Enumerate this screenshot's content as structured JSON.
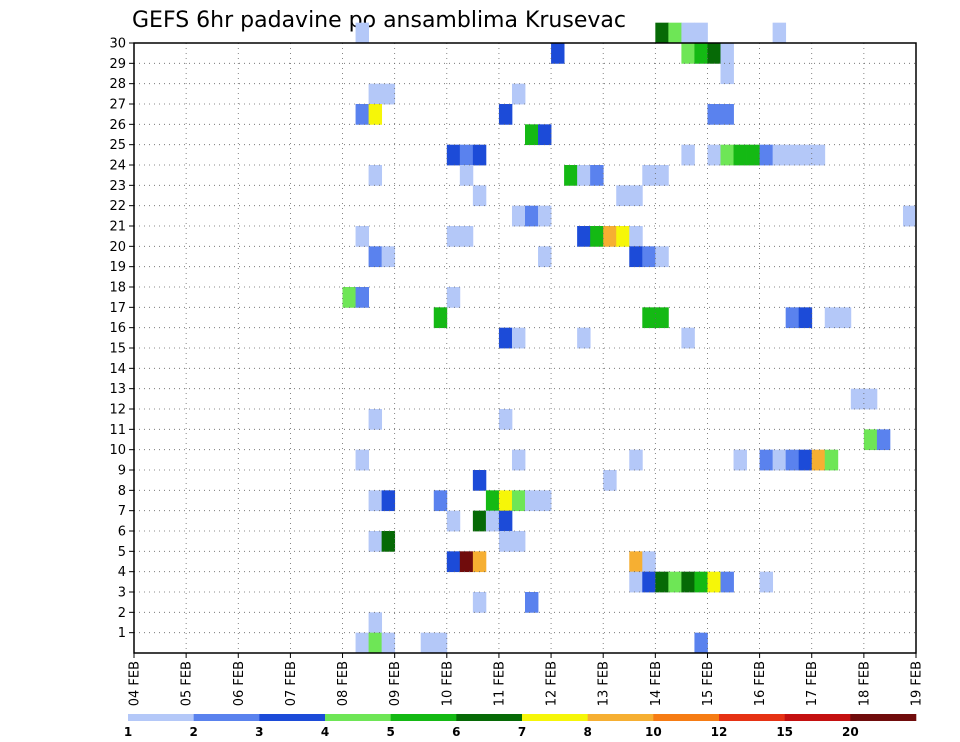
{
  "chart_data": {
    "type": "heatmap",
    "title": "GEFS 6hr padavine po ansamblima Krusevac",
    "xlabel": "",
    "ylabel": "",
    "x_ticks": [
      "04 FEB",
      "05 FEB",
      "06 FEB",
      "07 FEB",
      "08 FEB",
      "09 FEB",
      "10 FEB",
      "11 FEB",
      "12 FEB",
      "13 FEB",
      "14 FEB",
      "15 FEB",
      "16 FEB",
      "17 FEB",
      "18 FEB",
      "19 FEB"
    ],
    "y_ticks": [
      "1",
      "2",
      "3",
      "4",
      "5",
      "6",
      "7",
      "8",
      "9",
      "10",
      "11",
      "12",
      "13",
      "14",
      "15",
      "16",
      "17",
      "18",
      "19",
      "20",
      "21",
      "22",
      "23",
      "24",
      "25",
      "26",
      "27",
      "28",
      "29",
      "30"
    ],
    "xlim": [
      0,
      60
    ],
    "ylim": [
      0,
      30
    ],
    "grid": true,
    "colorbar": {
      "labels": [
        "1",
        "2",
        "3",
        "4",
        "5",
        "6",
        "7",
        "8",
        "10",
        "12",
        "15",
        "20"
      ],
      "colors": [
        "#b4c8f8",
        "#5a82ee",
        "#1c4bd8",
        "#6ee656",
        "#14b914",
        "#066a06",
        "#f6f608",
        "#f6af32",
        "#f67c14",
        "#e63214",
        "#c41010",
        "#700c0c"
      ]
    },
    "cells": [
      [
        17,
        30,
        1
      ],
      [
        40,
        30,
        6
      ],
      [
        41,
        30,
        4
      ],
      [
        42,
        30,
        1
      ],
      [
        43,
        30,
        1
      ],
      [
        49,
        30,
        1
      ],
      [
        32,
        29,
        3
      ],
      [
        42,
        29,
        4
      ],
      [
        43,
        29,
        5
      ],
      [
        44,
        29,
        6
      ],
      [
        45,
        29,
        1
      ],
      [
        45,
        28,
        1
      ],
      [
        18,
        27,
        1
      ],
      [
        19,
        27,
        1
      ],
      [
        29,
        27,
        1
      ],
      [
        17,
        26,
        2
      ],
      [
        18,
        26,
        7
      ],
      [
        28,
        26,
        3
      ],
      [
        44,
        26,
        2
      ],
      [
        45,
        26,
        2
      ],
      [
        30,
        25,
        5
      ],
      [
        31,
        25,
        3
      ],
      [
        24,
        24,
        3
      ],
      [
        25,
        24,
        2
      ],
      [
        26,
        24,
        3
      ],
      [
        42,
        24,
        1
      ],
      [
        44,
        24,
        1
      ],
      [
        45,
        24,
        4
      ],
      [
        46,
        24,
        5
      ],
      [
        47,
        24,
        5
      ],
      [
        48,
        24,
        2
      ],
      [
        49,
        24,
        1
      ],
      [
        50,
        24,
        1
      ],
      [
        51,
        24,
        1
      ],
      [
        52,
        24,
        1
      ],
      [
        18,
        23,
        1
      ],
      [
        25,
        23,
        1
      ],
      [
        33,
        23,
        5
      ],
      [
        34,
        23,
        1
      ],
      [
        35,
        23,
        2
      ],
      [
        39,
        23,
        1
      ],
      [
        40,
        23,
        1
      ],
      [
        26,
        22,
        1
      ],
      [
        37,
        22,
        1
      ],
      [
        38,
        22,
        1
      ],
      [
        29,
        21,
        1
      ],
      [
        30,
        21,
        2
      ],
      [
        31,
        21,
        1
      ],
      [
        59,
        21,
        1
      ],
      [
        17,
        20,
        1
      ],
      [
        24,
        20,
        1
      ],
      [
        25,
        20,
        1
      ],
      [
        34,
        20,
        3
      ],
      [
        35,
        20,
        5
      ],
      [
        36,
        20,
        8
      ],
      [
        37,
        20,
        7
      ],
      [
        38,
        20,
        1
      ],
      [
        18,
        19,
        2
      ],
      [
        19,
        19,
        1
      ],
      [
        31,
        19,
        1
      ],
      [
        38,
        19,
        3
      ],
      [
        39,
        19,
        2
      ],
      [
        40,
        19,
        1
      ],
      [
        16,
        17,
        4
      ],
      [
        17,
        17,
        2
      ],
      [
        24,
        17,
        1
      ],
      [
        23,
        16,
        5
      ],
      [
        39,
        16,
        5
      ],
      [
        40,
        16,
        5
      ],
      [
        50,
        16,
        2
      ],
      [
        51,
        16,
        3
      ],
      [
        53,
        16,
        1
      ],
      [
        54,
        16,
        1
      ],
      [
        28,
        15,
        3
      ],
      [
        29,
        15,
        1
      ],
      [
        34,
        15,
        1
      ],
      [
        42,
        15,
        1
      ],
      [
        55,
        12,
        1
      ],
      [
        56,
        12,
        1
      ],
      [
        18,
        11,
        1
      ],
      [
        28,
        11,
        1
      ],
      [
        56,
        10,
        4
      ],
      [
        57,
        10,
        2
      ],
      [
        17,
        9,
        1
      ],
      [
        29,
        9,
        1
      ],
      [
        38,
        9,
        1
      ],
      [
        46,
        9,
        1
      ],
      [
        48,
        9,
        2
      ],
      [
        49,
        9,
        1
      ],
      [
        50,
        9,
        2
      ],
      [
        51,
        9,
        3
      ],
      [
        52,
        9,
        8
      ],
      [
        53,
        9,
        4
      ],
      [
        26,
        8,
        3
      ],
      [
        36,
        8,
        1
      ],
      [
        18,
        7,
        1
      ],
      [
        19,
        7,
        3
      ],
      [
        23,
        7,
        2
      ],
      [
        27,
        7,
        5
      ],
      [
        28,
        7,
        7
      ],
      [
        29,
        7,
        4
      ],
      [
        30,
        7,
        1
      ],
      [
        31,
        7,
        1
      ],
      [
        24,
        6,
        1
      ],
      [
        26,
        6,
        6
      ],
      [
        27,
        6,
        1
      ],
      [
        28,
        6,
        3
      ],
      [
        18,
        5,
        1
      ],
      [
        19,
        5,
        6
      ],
      [
        28,
        5,
        1
      ],
      [
        29,
        5,
        1
      ],
      [
        24,
        4,
        3
      ],
      [
        25,
        4,
        12
      ],
      [
        26,
        4,
        8
      ],
      [
        38,
        4,
        8
      ],
      [
        39,
        4,
        1
      ],
      [
        38,
        3,
        1
      ],
      [
        39,
        3,
        3
      ],
      [
        40,
        3,
        6
      ],
      [
        41,
        3,
        4
      ],
      [
        42,
        3,
        6
      ],
      [
        43,
        3,
        5
      ],
      [
        44,
        3,
        7
      ],
      [
        45,
        3,
        2
      ],
      [
        48,
        3,
        1
      ],
      [
        26,
        2,
        1
      ],
      [
        30,
        2,
        2
      ],
      [
        18,
        1,
        1
      ],
      [
        17,
        0,
        1
      ],
      [
        18,
        0,
        4
      ],
      [
        19,
        0,
        1
      ],
      [
        22,
        0,
        1
      ],
      [
        23,
        0,
        1
      ],
      [
        43,
        0,
        2
      ]
    ]
  }
}
